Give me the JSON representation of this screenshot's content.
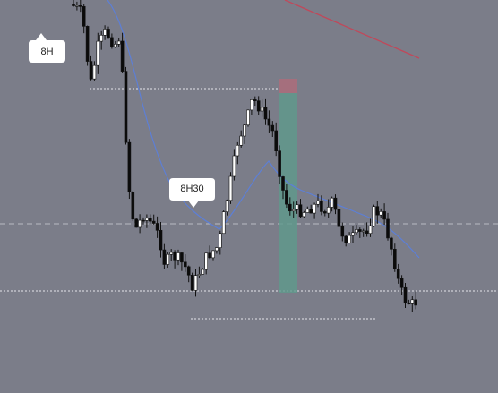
{
  "annotations": [
    {
      "label": "8H"
    },
    {
      "label": "8H30"
    }
  ]
}
